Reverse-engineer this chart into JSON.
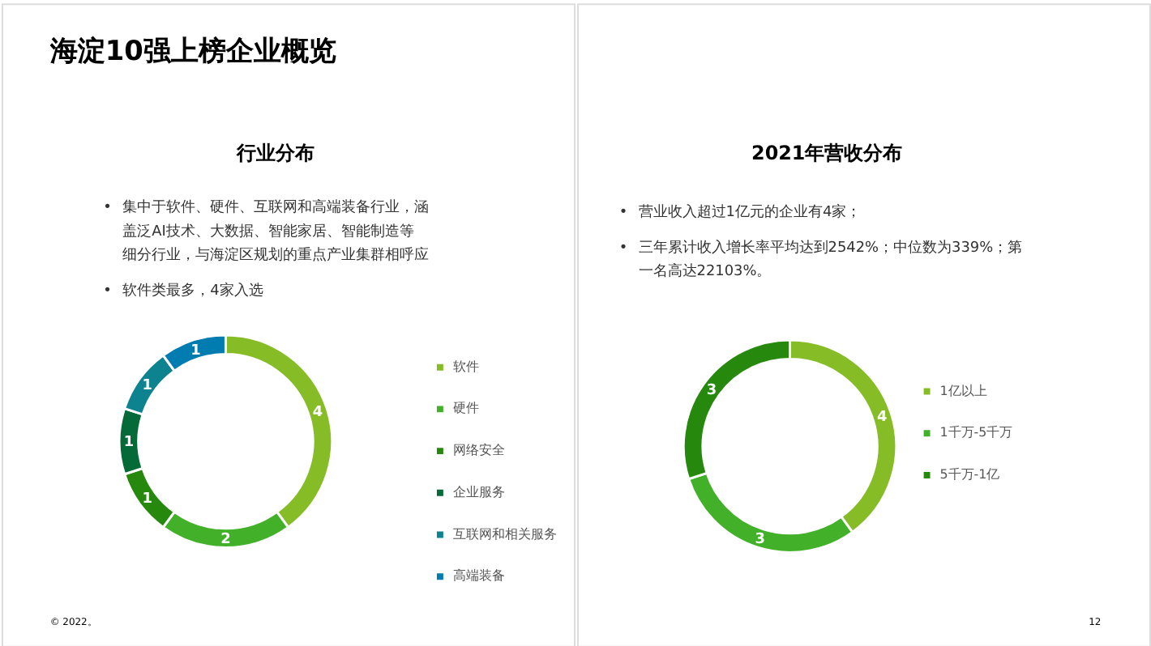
{
  "chart_data": [
    {
      "type": "donut",
      "title": "海淀10强上榜企业概览",
      "subtitle": "行业分布",
      "categories": [
        "软件",
        "硬件",
        "网络安全",
        "企业服务",
        "互联网和相关服务",
        "高端装备"
      ],
      "values": [
        4,
        2,
        1,
        1,
        1,
        1
      ],
      "colors": [
        "#86bc25",
        "#43b02a",
        "#26890d",
        "#046a38",
        "#0d8390",
        "#007cb0"
      ],
      "data_labels": true,
      "legend": "right",
      "annotations": [
        "• 集中于软件、硬件、互联网和高端装备行业，涵盖泛AI技术、大数据、智能家居、智能制造等细分行业，与海淀区规划的重点产业集群相呼应",
        "• 软件类最多，4家入选",
        "© 2022。"
      ]
    },
    {
      "type": "donut",
      "subtitle": "2021年营收分布",
      "categories": [
        "1亿以上",
        "1千万-5千万",
        "5千万-1亿"
      ],
      "values": [
        4,
        3,
        3
      ],
      "colors": [
        "#86bc25",
        "#43b02a",
        "#26890d"
      ],
      "data_labels": true,
      "legend": "right",
      "annotations": [
        "• 营业收入超过1亿元的企业有4家；",
        "• 三年累计收入增长率平均达到2542%；中位数为339%；第一名高达22103%。",
        "12"
      ]
    }
  ]
}
